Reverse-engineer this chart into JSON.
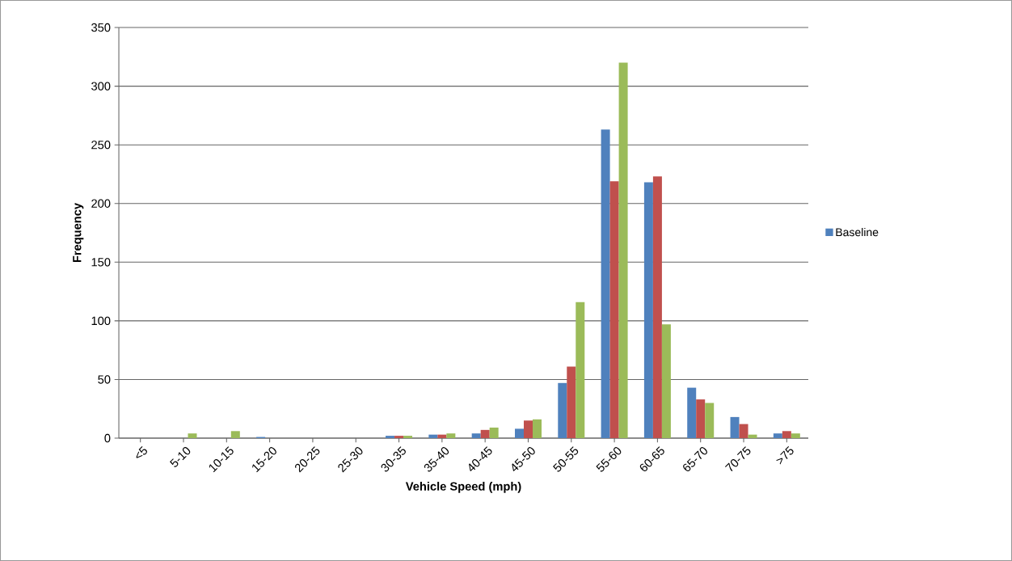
{
  "chart_data": {
    "type": "bar",
    "xlabel": "Vehicle Speed (mph)",
    "ylabel": "Frequency",
    "categories": [
      "<5",
      "5-10",
      "10-15",
      "15-20",
      "20-25",
      "25-30",
      "30-35",
      "35-40",
      "40-45",
      "45-50",
      "50-55",
      "55-60",
      "60-65",
      "65-70",
      "70-75",
      ">75"
    ],
    "series": [
      {
        "name": "Baseline",
        "color": "#4f81bd",
        "values": [
          0,
          0,
          0,
          1,
          0,
          0,
          2,
          3,
          4,
          8,
          47,
          263,
          218,
          43,
          18,
          4
        ]
      },
      {
        "color": "#c0504d",
        "values": [
          0,
          0,
          0,
          0,
          0,
          0,
          2,
          3,
          7,
          15,
          61,
          219,
          223,
          33,
          12,
          6
        ]
      },
      {
        "color": "#9bbb59",
        "values": [
          0,
          4,
          6,
          0,
          0,
          0,
          2,
          4,
          9,
          16,
          116,
          320,
          97,
          30,
          3,
          4
        ]
      }
    ],
    "ylim": [
      0,
      350
    ],
    "yticks": [
      0,
      50,
      100,
      150,
      200,
      250,
      300,
      350
    ],
    "grid": "y",
    "legend": "right"
  }
}
